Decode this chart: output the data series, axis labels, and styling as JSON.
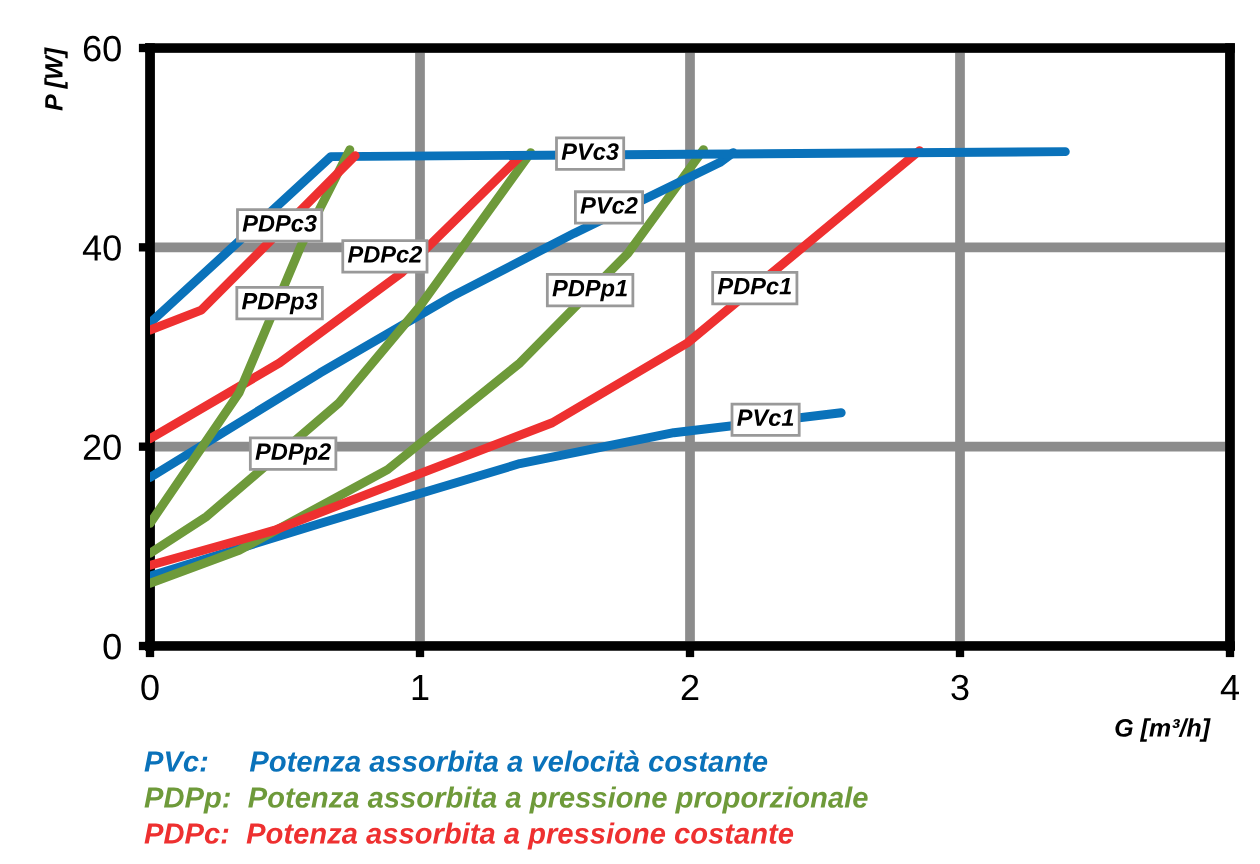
{
  "chart_data": {
    "type": "line",
    "xlabel": "G [m³/h]",
    "ylabel": "P [W]",
    "xlim": [
      0,
      4
    ],
    "ylim": [
      0,
      60
    ],
    "xticks": [
      0,
      1,
      2,
      3,
      4
    ],
    "yticks": [
      0,
      20,
      40,
      60
    ],
    "grid": true,
    "marker": "none",
    "line_style": "solid",
    "series": [
      {
        "color": "#0a72ba",
        "x": [
          0,
          0.63,
          1.37,
          1.94,
          2.56
        ],
        "values": [
          7.0,
          12.3,
          18.3,
          21.4,
          23.4
        ]
      },
      {
        "color": "#6e9a3a",
        "x": [
          0,
          0.33,
          0.88,
          1.37,
          1.77,
          2.05
        ],
        "values": [
          6.3,
          9.6,
          17.7,
          28.4,
          39.4,
          49.8
        ]
      },
      {
        "color": "#ee3030",
        "x": [
          0,
          0.46,
          1.0,
          1.49,
          1.99,
          2.85
        ],
        "values": [
          8.1,
          11.6,
          17.3,
          22.4,
          30.4,
          49.7
        ]
      },
      {
        "color": "#0a72ba",
        "x": [
          0,
          0.63,
          1.12,
          1.57,
          2.11,
          2.16
        ],
        "values": [
          16.9,
          27.4,
          35.1,
          41.4,
          48.5,
          49.5
        ]
      },
      {
        "color": "#6e9a3a",
        "x": [
          0,
          0.21,
          0.7,
          1.0,
          1.41
        ],
        "values": [
          9.3,
          13.0,
          24.4,
          34.1,
          49.5
        ]
      },
      {
        "color": "#ee3030",
        "x": [
          0,
          0.48,
          0.93,
          1.37
        ],
        "values": [
          20.8,
          28.4,
          37.4,
          49.1
        ]
      },
      {
        "color": "#0a72ba",
        "x": [
          0,
          0.67,
          3.39
        ],
        "values": [
          32.4,
          49.1,
          49.6
        ]
      },
      {
        "color": "#6e9a3a",
        "x": [
          0,
          0.33,
          0.56,
          0.74
        ],
        "values": [
          12.3,
          25.4,
          40.2,
          49.8
        ]
      },
      {
        "color": "#ee3030",
        "x": [
          0,
          0.19,
          0.76
        ],
        "values": [
          31.7,
          33.7,
          49.2
        ]
      }
    ],
    "annotations": [
      {
        "text": "PVc1",
        "x": 2.28,
        "y": 22.7
      },
      {
        "text": "PDPp1",
        "x": 1.63,
        "y": 35.7
      },
      {
        "text": "PDPc1",
        "x": 2.24,
        "y": 35.9
      },
      {
        "text": "PVc2",
        "x": 1.7,
        "y": 44.0
      },
      {
        "text": "PDPp2",
        "x": 0.53,
        "y": 19.3
      },
      {
        "text": "PDPc2",
        "x": 0.87,
        "y": 39.1
      },
      {
        "text": "PVc3",
        "x": 1.63,
        "y": 49.4
      },
      {
        "text": "PDPp3",
        "x": 0.48,
        "y": 34.4
      },
      {
        "text": "PDPc3",
        "x": 0.48,
        "y": 42.2
      },
      "PVc:     Potenza assorbita a velocità costante",
      "PDPp:  Potenza assorbita a pressione proporzionale",
      "PDPc:  Potenza assorbita a pressione costante"
    ]
  }
}
